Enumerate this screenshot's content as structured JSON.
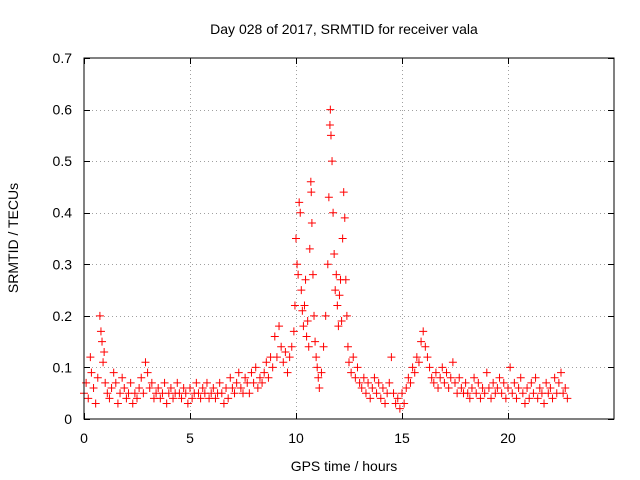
{
  "chart_data": {
    "type": "scatter",
    "title": "Day 028 of 2017, SRMTID for receiver vala",
    "xlabel": "GPS time / hours",
    "ylabel": "SRMTID / TECUs",
    "xlim": [
      0,
      25
    ],
    "ylim": [
      0,
      0.7
    ],
    "xticks": [
      0,
      5,
      10,
      15,
      20
    ],
    "xtick_labels": [
      "0",
      "5",
      "10",
      "15",
      "20"
    ],
    "yticks": [
      0,
      0.1,
      0.2,
      0.3,
      0.4,
      0.5,
      0.6,
      0.7
    ],
    "ytick_labels": [
      "0",
      "0.1",
      "0.2",
      "0.3",
      "0.4",
      "0.5",
      "0.6",
      "0.7"
    ],
    "grid": true,
    "marker": "plus",
    "color": "#ff0000",
    "series": [
      {
        "name": "SRMTID",
        "points": [
          [
            0.0,
            0.05
          ],
          [
            0.1,
            0.07
          ],
          [
            0.2,
            0.04
          ],
          [
            0.3,
            0.12
          ],
          [
            0.35,
            0.09
          ],
          [
            0.45,
            0.06
          ],
          [
            0.55,
            0.03
          ],
          [
            0.65,
            0.08
          ],
          [
            0.75,
            0.2
          ],
          [
            0.8,
            0.17
          ],
          [
            0.85,
            0.15
          ],
          [
            0.9,
            0.11
          ],
          [
            0.95,
            0.13
          ],
          [
            1.0,
            0.07
          ],
          [
            1.1,
            0.05
          ],
          [
            1.2,
            0.04
          ],
          [
            1.3,
            0.06
          ],
          [
            1.4,
            0.09
          ],
          [
            1.5,
            0.07
          ],
          [
            1.6,
            0.03
          ],
          [
            1.7,
            0.05
          ],
          [
            1.8,
            0.08
          ],
          [
            1.9,
            0.06
          ],
          [
            2.0,
            0.04
          ],
          [
            2.1,
            0.05
          ],
          [
            2.2,
            0.07
          ],
          [
            2.3,
            0.03
          ],
          [
            2.4,
            0.05
          ],
          [
            2.5,
            0.04
          ],
          [
            2.6,
            0.06
          ],
          [
            2.7,
            0.08
          ],
          [
            2.8,
            0.05
          ],
          [
            2.9,
            0.11
          ],
          [
            3.0,
            0.09
          ],
          [
            3.1,
            0.06
          ],
          [
            3.2,
            0.07
          ],
          [
            3.3,
            0.04
          ],
          [
            3.4,
            0.05
          ],
          [
            3.5,
            0.06
          ],
          [
            3.6,
            0.04
          ],
          [
            3.7,
            0.05
          ],
          [
            3.8,
            0.07
          ],
          [
            3.9,
            0.03
          ],
          [
            4.0,
            0.05
          ],
          [
            4.1,
            0.06
          ],
          [
            4.2,
            0.04
          ],
          [
            4.3,
            0.05
          ],
          [
            4.4,
            0.07
          ],
          [
            4.5,
            0.05
          ],
          [
            4.6,
            0.04
          ],
          [
            4.7,
            0.06
          ],
          [
            4.8,
            0.05
          ],
          [
            4.9,
            0.03
          ],
          [
            5.0,
            0.06
          ],
          [
            5.1,
            0.04
          ],
          [
            5.2,
            0.05
          ],
          [
            5.3,
            0.07
          ],
          [
            5.4,
            0.05
          ],
          [
            5.5,
            0.04
          ],
          [
            5.6,
            0.06
          ],
          [
            5.7,
            0.05
          ],
          [
            5.8,
            0.07
          ],
          [
            5.9,
            0.04
          ],
          [
            6.0,
            0.05
          ],
          [
            6.1,
            0.06
          ],
          [
            6.2,
            0.04
          ],
          [
            6.3,
            0.05
          ],
          [
            6.4,
            0.07
          ],
          [
            6.5,
            0.05
          ],
          [
            6.6,
            0.03
          ],
          [
            6.7,
            0.06
          ],
          [
            6.8,
            0.04
          ],
          [
            6.9,
            0.08
          ],
          [
            7.0,
            0.06
          ],
          [
            7.1,
            0.05
          ],
          [
            7.2,
            0.07
          ],
          [
            7.3,
            0.09
          ],
          [
            7.4,
            0.06
          ],
          [
            7.5,
            0.05
          ],
          [
            7.6,
            0.08
          ],
          [
            7.7,
            0.07
          ],
          [
            7.8,
            0.05
          ],
          [
            7.9,
            0.09
          ],
          [
            8.0,
            0.07
          ],
          [
            8.1,
            0.1
          ],
          [
            8.2,
            0.06
          ],
          [
            8.3,
            0.08
          ],
          [
            8.4,
            0.07
          ],
          [
            8.5,
            0.09
          ],
          [
            8.6,
            0.11
          ],
          [
            8.7,
            0.08
          ],
          [
            8.8,
            0.12
          ],
          [
            8.9,
            0.1
          ],
          [
            9.0,
            0.16
          ],
          [
            9.1,
            0.12
          ],
          [
            9.2,
            0.18
          ],
          [
            9.3,
            0.14
          ],
          [
            9.4,
            0.11
          ],
          [
            9.5,
            0.13
          ],
          [
            9.6,
            0.09
          ],
          [
            9.7,
            0.12
          ],
          [
            9.8,
            0.14
          ],
          [
            9.9,
            0.17
          ],
          [
            9.95,
            0.22
          ],
          [
            10.0,
            0.35
          ],
          [
            10.05,
            0.3
          ],
          [
            10.1,
            0.28
          ],
          [
            10.15,
            0.42
          ],
          [
            10.2,
            0.4
          ],
          [
            10.25,
            0.25
          ],
          [
            10.3,
            0.21
          ],
          [
            10.35,
            0.18
          ],
          [
            10.4,
            0.22
          ],
          [
            10.45,
            0.27
          ],
          [
            10.5,
            0.16
          ],
          [
            10.55,
            0.19
          ],
          [
            10.6,
            0.14
          ],
          [
            10.65,
            0.33
          ],
          [
            10.7,
            0.46
          ],
          [
            10.72,
            0.44
          ],
          [
            10.75,
            0.38
          ],
          [
            10.8,
            0.28
          ],
          [
            10.85,
            0.2
          ],
          [
            10.9,
            0.15
          ],
          [
            10.95,
            0.12
          ],
          [
            11.0,
            0.1
          ],
          [
            11.05,
            0.08
          ],
          [
            11.1,
            0.06
          ],
          [
            11.2,
            0.09
          ],
          [
            11.3,
            0.14
          ],
          [
            11.4,
            0.2
          ],
          [
            11.5,
            0.3
          ],
          [
            11.55,
            0.43
          ],
          [
            11.6,
            0.57
          ],
          [
            11.62,
            0.6
          ],
          [
            11.65,
            0.55
          ],
          [
            11.7,
            0.5
          ],
          [
            11.75,
            0.4
          ],
          [
            11.8,
            0.32
          ],
          [
            11.85,
            0.25
          ],
          [
            11.9,
            0.28
          ],
          [
            11.95,
            0.22
          ],
          [
            12.0,
            0.18
          ],
          [
            12.05,
            0.24
          ],
          [
            12.1,
            0.27
          ],
          [
            12.15,
            0.19
          ],
          [
            12.2,
            0.35
          ],
          [
            12.25,
            0.44
          ],
          [
            12.3,
            0.39
          ],
          [
            12.35,
            0.27
          ],
          [
            12.4,
            0.2
          ],
          [
            12.45,
            0.14
          ],
          [
            12.5,
            0.11
          ],
          [
            12.6,
            0.09
          ],
          [
            12.7,
            0.12
          ],
          [
            12.8,
            0.08
          ],
          [
            12.9,
            0.1
          ],
          [
            13.0,
            0.07
          ],
          [
            13.1,
            0.06
          ],
          [
            13.2,
            0.08
          ],
          [
            13.3,
            0.05
          ],
          [
            13.4,
            0.07
          ],
          [
            13.5,
            0.04
          ],
          [
            13.6,
            0.06
          ],
          [
            13.7,
            0.08
          ],
          [
            13.8,
            0.05
          ],
          [
            13.9,
            0.07
          ],
          [
            14.0,
            0.04
          ],
          [
            14.1,
            0.06
          ],
          [
            14.2,
            0.03
          ],
          [
            14.3,
            0.05
          ],
          [
            14.4,
            0.07
          ],
          [
            14.5,
            0.12
          ],
          [
            14.6,
            0.05
          ],
          [
            14.7,
            0.03
          ],
          [
            14.8,
            0.04
          ],
          [
            14.9,
            0.02
          ],
          [
            15.0,
            0.05
          ],
          [
            15.1,
            0.03
          ],
          [
            15.2,
            0.06
          ],
          [
            15.3,
            0.08
          ],
          [
            15.4,
            0.07
          ],
          [
            15.5,
            0.1
          ],
          [
            15.6,
            0.09
          ],
          [
            15.7,
            0.12
          ],
          [
            15.8,
            0.11
          ],
          [
            15.9,
            0.15
          ],
          [
            16.0,
            0.17
          ],
          [
            16.1,
            0.14
          ],
          [
            16.2,
            0.12
          ],
          [
            16.3,
            0.1
          ],
          [
            16.4,
            0.08
          ],
          [
            16.5,
            0.07
          ],
          [
            16.6,
            0.09
          ],
          [
            16.7,
            0.06
          ],
          [
            16.8,
            0.08
          ],
          [
            16.9,
            0.1
          ],
          [
            17.0,
            0.07
          ],
          [
            17.1,
            0.09
          ],
          [
            17.2,
            0.06
          ],
          [
            17.3,
            0.08
          ],
          [
            17.4,
            0.11
          ],
          [
            17.5,
            0.07
          ],
          [
            17.6,
            0.05
          ],
          [
            17.7,
            0.08
          ],
          [
            17.8,
            0.06
          ],
          [
            17.9,
            0.05
          ],
          [
            18.0,
            0.07
          ],
          [
            18.1,
            0.05
          ],
          [
            18.2,
            0.04
          ],
          [
            18.3,
            0.06
          ],
          [
            18.4,
            0.08
          ],
          [
            18.5,
            0.05
          ],
          [
            18.6,
            0.07
          ],
          [
            18.7,
            0.04
          ],
          [
            18.8,
            0.06
          ],
          [
            18.9,
            0.05
          ],
          [
            19.0,
            0.09
          ],
          [
            19.1,
            0.06
          ],
          [
            19.2,
            0.04
          ],
          [
            19.3,
            0.07
          ],
          [
            19.4,
            0.05
          ],
          [
            19.5,
            0.06
          ],
          [
            19.6,
            0.08
          ],
          [
            19.7,
            0.05
          ],
          [
            19.8,
            0.07
          ],
          [
            19.9,
            0.04
          ],
          [
            20.0,
            0.06
          ],
          [
            20.1,
            0.1
          ],
          [
            20.2,
            0.05
          ],
          [
            20.3,
            0.07
          ],
          [
            20.4,
            0.04
          ],
          [
            20.5,
            0.06
          ],
          [
            20.6,
            0.08
          ],
          [
            20.7,
            0.05
          ],
          [
            20.8,
            0.03
          ],
          [
            20.9,
            0.06
          ],
          [
            21.0,
            0.04
          ],
          [
            21.1,
            0.07
          ],
          [
            21.2,
            0.05
          ],
          [
            21.3,
            0.08
          ],
          [
            21.4,
            0.04
          ],
          [
            21.5,
            0.06
          ],
          [
            21.6,
            0.05
          ],
          [
            21.7,
            0.03
          ],
          [
            21.8,
            0.07
          ],
          [
            21.9,
            0.05
          ],
          [
            22.0,
            0.06
          ],
          [
            22.1,
            0.04
          ],
          [
            22.2,
            0.08
          ],
          [
            22.3,
            0.05
          ],
          [
            22.4,
            0.07
          ],
          [
            22.5,
            0.09
          ],
          [
            22.6,
            0.05
          ],
          [
            22.7,
            0.06
          ],
          [
            22.8,
            0.04
          ]
        ]
      }
    ]
  }
}
